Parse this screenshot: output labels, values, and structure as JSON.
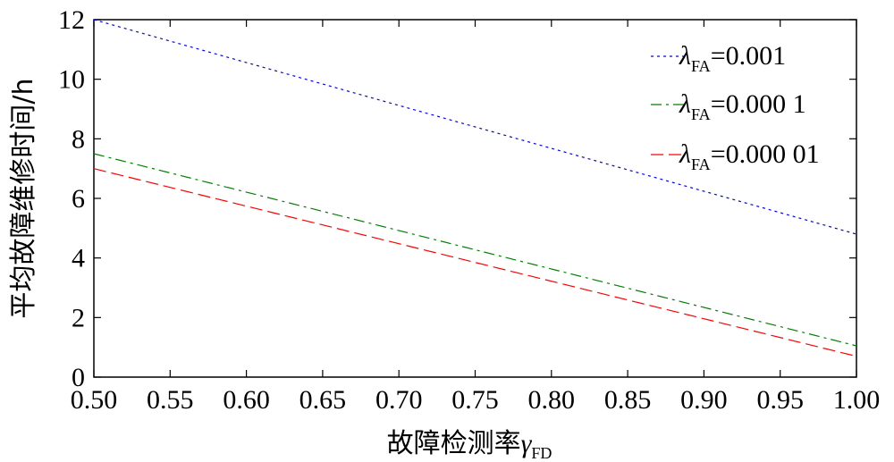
{
  "chart_data": {
    "type": "line",
    "xlabel": "故障检测率",
    "xlabel_symbol": "γ",
    "xlabel_subscript": "FD",
    "ylabel": "平均故障维修时间/h",
    "xlim": [
      0.5,
      1.0
    ],
    "ylim": [
      0,
      12
    ],
    "x_ticks": [
      "0.50",
      "0.55",
      "0.60",
      "0.65",
      "0.70",
      "0.75",
      "0.80",
      "0.85",
      "0.90",
      "0.95",
      "1.00"
    ],
    "y_ticks": [
      "0",
      "2",
      "4",
      "6",
      "8",
      "10",
      "12"
    ],
    "grid": false,
    "legend_position": "top-right",
    "series": [
      {
        "name": "λFA=0.001",
        "legend_symbol": "λ",
        "legend_subscript": "FA",
        "legend_value": "=0.001",
        "color": "#0000ff",
        "dash": "dotted",
        "x": [
          0.5,
          1.0
        ],
        "y": [
          12.0,
          4.8
        ]
      },
      {
        "name": "λFA=0.000 1",
        "legend_symbol": "λ",
        "legend_subscript": "FA",
        "legend_value": "=0.000 1",
        "color": "#008000",
        "dash": "dash-dot",
        "x": [
          0.5,
          1.0
        ],
        "y": [
          7.5,
          1.05
        ]
      },
      {
        "name": "λFA=0.000 01",
        "legend_symbol": "λ",
        "legend_subscript": "FA",
        "legend_value": "=0.000 01",
        "color": "#ff0000",
        "dash": "dashed",
        "x": [
          0.5,
          1.0
        ],
        "y": [
          7.0,
          0.7
        ]
      }
    ]
  }
}
